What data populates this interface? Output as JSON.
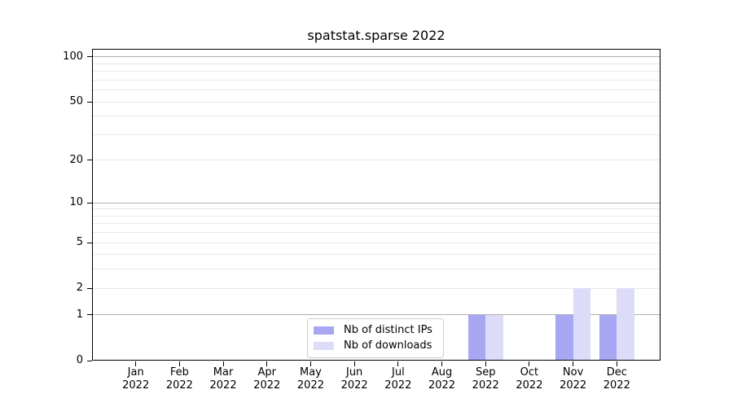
{
  "chart_data": {
    "type": "bar",
    "title": "spatstat.sparse 2022",
    "categories": [
      "Jan",
      "Feb",
      "Mar",
      "Apr",
      "May",
      "Jun",
      "Jul",
      "Aug",
      "Sep",
      "Oct",
      "Nov",
      "Dec"
    ],
    "x_tick_year": "2022",
    "series": [
      {
        "name": "Nb of distinct IPs",
        "color": "#a7a7f3",
        "values": [
          0,
          0,
          0,
          0,
          0,
          0,
          0,
          0,
          1,
          0,
          1,
          1
        ]
      },
      {
        "name": "Nb of downloads",
        "color": "#dcdcf9",
        "values": [
          0,
          0,
          0,
          0,
          0,
          0,
          0,
          0,
          1,
          0,
          2,
          2
        ]
      }
    ],
    "yscale": "log1p",
    "ylim": [
      0,
      113
    ],
    "yticks": [
      0,
      1,
      2,
      5,
      10,
      20,
      50,
      100
    ],
    "grid_major": [
      1,
      10,
      100
    ],
    "grid_minor": [
      2,
      3,
      4,
      5,
      6,
      7,
      8,
      9,
      20,
      30,
      40,
      50,
      60,
      70,
      80,
      90
    ],
    "grid_major_color": "#b0b0b0",
    "grid_minor_color": "#e8e8e8",
    "legend_position": "lower center",
    "grid": "on"
  }
}
